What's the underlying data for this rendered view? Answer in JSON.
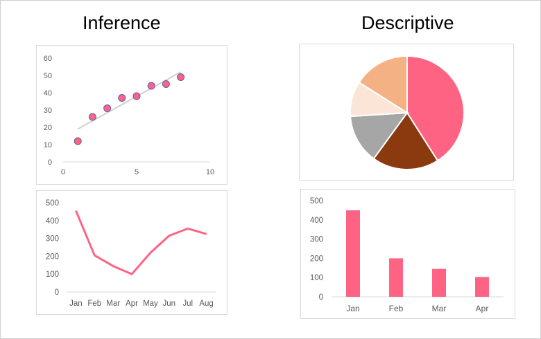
{
  "titles": {
    "left": "Inference",
    "right": "Descriptive"
  },
  "chart_data": [
    {
      "id": "scatter",
      "type": "scatter",
      "x": [
        1,
        2,
        3,
        4,
        5,
        6,
        7,
        8
      ],
      "y": [
        12,
        26,
        31,
        37,
        38,
        44,
        45,
        49
      ],
      "trendline": {
        "x": [
          1,
          8
        ],
        "y": [
          19,
          52
        ]
      },
      "xticks": [
        "0",
        "5",
        "10"
      ],
      "yticks": [
        "0",
        "10",
        "20",
        "30",
        "40",
        "50",
        "60"
      ],
      "xlim": [
        0,
        10
      ],
      "ylim": [
        0,
        60
      ],
      "marker_color": "#ff6384",
      "marker_edge": "#5a5ab8",
      "trend_color": "#d0d0d0"
    },
    {
      "id": "line",
      "type": "line",
      "categories": [
        "Jan",
        "Feb",
        "Mar",
        "Apr",
        "May",
        "Jun",
        "Jul",
        "Aug"
      ],
      "values": [
        455,
        205,
        145,
        100,
        220,
        315,
        355,
        325
      ],
      "yticks": [
        "0",
        "100",
        "200",
        "300",
        "400",
        "500"
      ],
      "ylim": [
        0,
        500
      ],
      "color": "#ff6384"
    },
    {
      "id": "pie",
      "type": "pie",
      "values": [
        41,
        19,
        14,
        10,
        16
      ],
      "colors": [
        "#ff6384",
        "#8b3a0f",
        "#a6a6a6",
        "#fbe5d6",
        "#f4b183"
      ],
      "start_angle_deg": 0
    },
    {
      "id": "bar",
      "type": "bar",
      "categories": [
        "Jan",
        "Feb",
        "Mar",
        "Apr"
      ],
      "values": [
        450,
        200,
        145,
        103
      ],
      "yticks": [
        "0",
        "100",
        "200",
        "300",
        "400",
        "500"
      ],
      "ylim": [
        0,
        500
      ],
      "color": "#ff6384"
    }
  ]
}
